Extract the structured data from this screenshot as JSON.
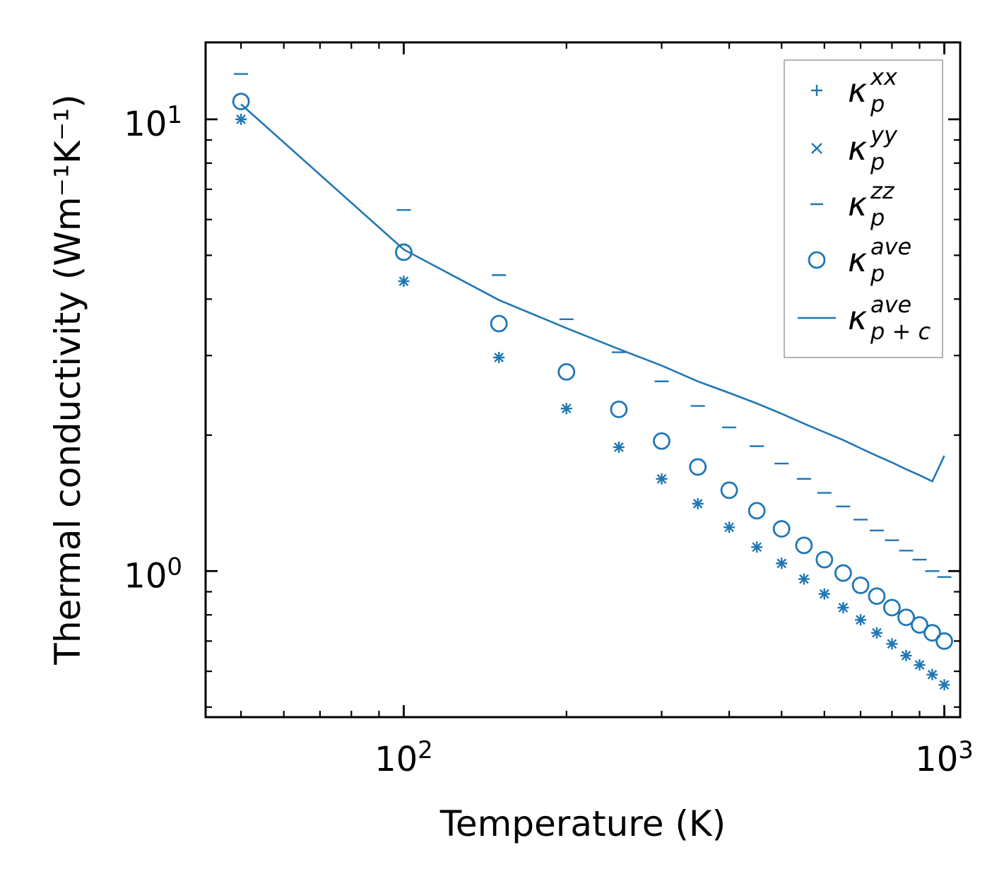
{
  "chart_data": {
    "type": "scatter",
    "xscale": "log",
    "yscale": "log",
    "xlabel": "Temperature (K)",
    "ylabel": "Thermal conductivity (Wm⁻¹K⁻¹)",
    "xlim": [
      43,
      1070
    ],
    "ylim": [
      0.475,
      14.8
    ],
    "x_ticks": [
      {
        "value": 100,
        "base": "10",
        "exp": "2"
      },
      {
        "value": 1000,
        "base": "10",
        "exp": "3"
      }
    ],
    "y_ticks": [
      {
        "value": 1,
        "base": "10",
        "exp": "0"
      },
      {
        "value": 10,
        "base": "10",
        "exp": "1"
      }
    ],
    "x": [
      50,
      100,
      150,
      200,
      250,
      300,
      350,
      400,
      450,
      500,
      550,
      600,
      650,
      700,
      750,
      800,
      850,
      900,
      950,
      1000
    ],
    "series": [
      {
        "name": "kxx",
        "marker": "plus",
        "label_base": "κ",
        "label_sup": "xx",
        "label_sub": "p",
        "values": [
          10.0,
          4.38,
          2.97,
          2.29,
          1.88,
          1.6,
          1.41,
          1.25,
          1.13,
          1.04,
          0.96,
          0.89,
          0.83,
          0.78,
          0.73,
          0.69,
          0.65,
          0.62,
          0.59,
          0.56
        ]
      },
      {
        "name": "kyy",
        "marker": "x",
        "label_base": "κ",
        "label_sup": "yy",
        "label_sub": "p",
        "values": [
          10.0,
          4.38,
          2.97,
          2.29,
          1.88,
          1.6,
          1.41,
          1.25,
          1.13,
          1.04,
          0.96,
          0.89,
          0.83,
          0.78,
          0.73,
          0.69,
          0.65,
          0.62,
          0.59,
          0.56
        ]
      },
      {
        "name": "kzz",
        "marker": "hline",
        "label_base": "κ",
        "label_sup": "zz",
        "label_sub": "p",
        "values": [
          12.6,
          6.3,
          4.52,
          3.61,
          3.05,
          2.63,
          2.32,
          2.08,
          1.89,
          1.73,
          1.6,
          1.49,
          1.39,
          1.3,
          1.23,
          1.17,
          1.11,
          1.06,
          1.0,
          0.97
        ]
      },
      {
        "name": "kave",
        "marker": "circle",
        "label_base": "κ",
        "label_sup": "ave",
        "label_sub": "p",
        "values": [
          10.95,
          5.08,
          3.53,
          2.76,
          2.28,
          1.94,
          1.7,
          1.51,
          1.36,
          1.24,
          1.14,
          1.06,
          0.99,
          0.93,
          0.88,
          0.83,
          0.79,
          0.76,
          0.73,
          0.7
        ]
      },
      {
        "name": "kave_pc",
        "marker": "line",
        "label_base": "κ",
        "label_sup": "ave",
        "label_sub": "p + c",
        "values": [
          10.8,
          5.15,
          3.98,
          3.45,
          3.1,
          2.85,
          2.63,
          2.48,
          2.35,
          2.23,
          2.12,
          2.03,
          1.95,
          1.87,
          1.8,
          1.74,
          1.68,
          1.63,
          1.58,
          1.8
        ]
      }
    ],
    "legend_position": "top-right",
    "color": "#1f77b4"
  }
}
